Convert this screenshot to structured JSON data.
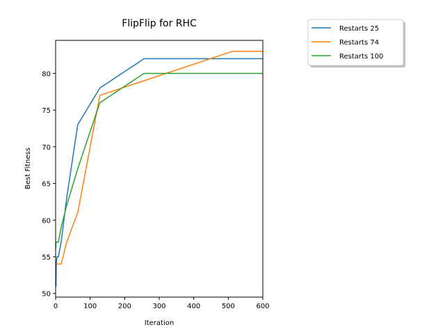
{
  "chart_data": {
    "type": "line",
    "title": "FlipFlip for RHC",
    "xlabel": "Iteration",
    "ylabel": "Best Fitness",
    "xlim": [
      0,
      600
    ],
    "ylim": [
      49.5,
      84.5
    ],
    "xticks": [
      0,
      100,
      200,
      300,
      400,
      500,
      600
    ],
    "yticks": [
      50,
      55,
      60,
      65,
      70,
      75,
      80
    ],
    "grid": false,
    "legend_position": "upper right, outside plot",
    "series": [
      {
        "name": "Restarts 25",
        "color": "#1f77b4",
        "x": [
          0,
          1,
          2,
          4,
          8,
          16,
          32,
          64,
          128,
          256,
          512,
          600
        ],
        "y": [
          51,
          51,
          54,
          55,
          55,
          57,
          63,
          73,
          78,
          82,
          82,
          82
        ]
      },
      {
        "name": "Restarts 74",
        "color": "#ff7f0e",
        "x": [
          0,
          1,
          2,
          4,
          8,
          16,
          32,
          64,
          128,
          256,
          512,
          600
        ],
        "y": [
          54,
          54,
          54,
          54,
          54,
          54,
          57,
          61,
          77,
          79,
          83,
          83
        ]
      },
      {
        "name": "Restarts 100",
        "color": "#2ca02c",
        "x": [
          0,
          1,
          2,
          4,
          8,
          16,
          32,
          64,
          128,
          256,
          512,
          600
        ],
        "y": [
          56,
          57,
          57,
          57,
          57,
          59,
          62,
          67,
          76,
          80,
          80,
          80
        ]
      }
    ]
  }
}
